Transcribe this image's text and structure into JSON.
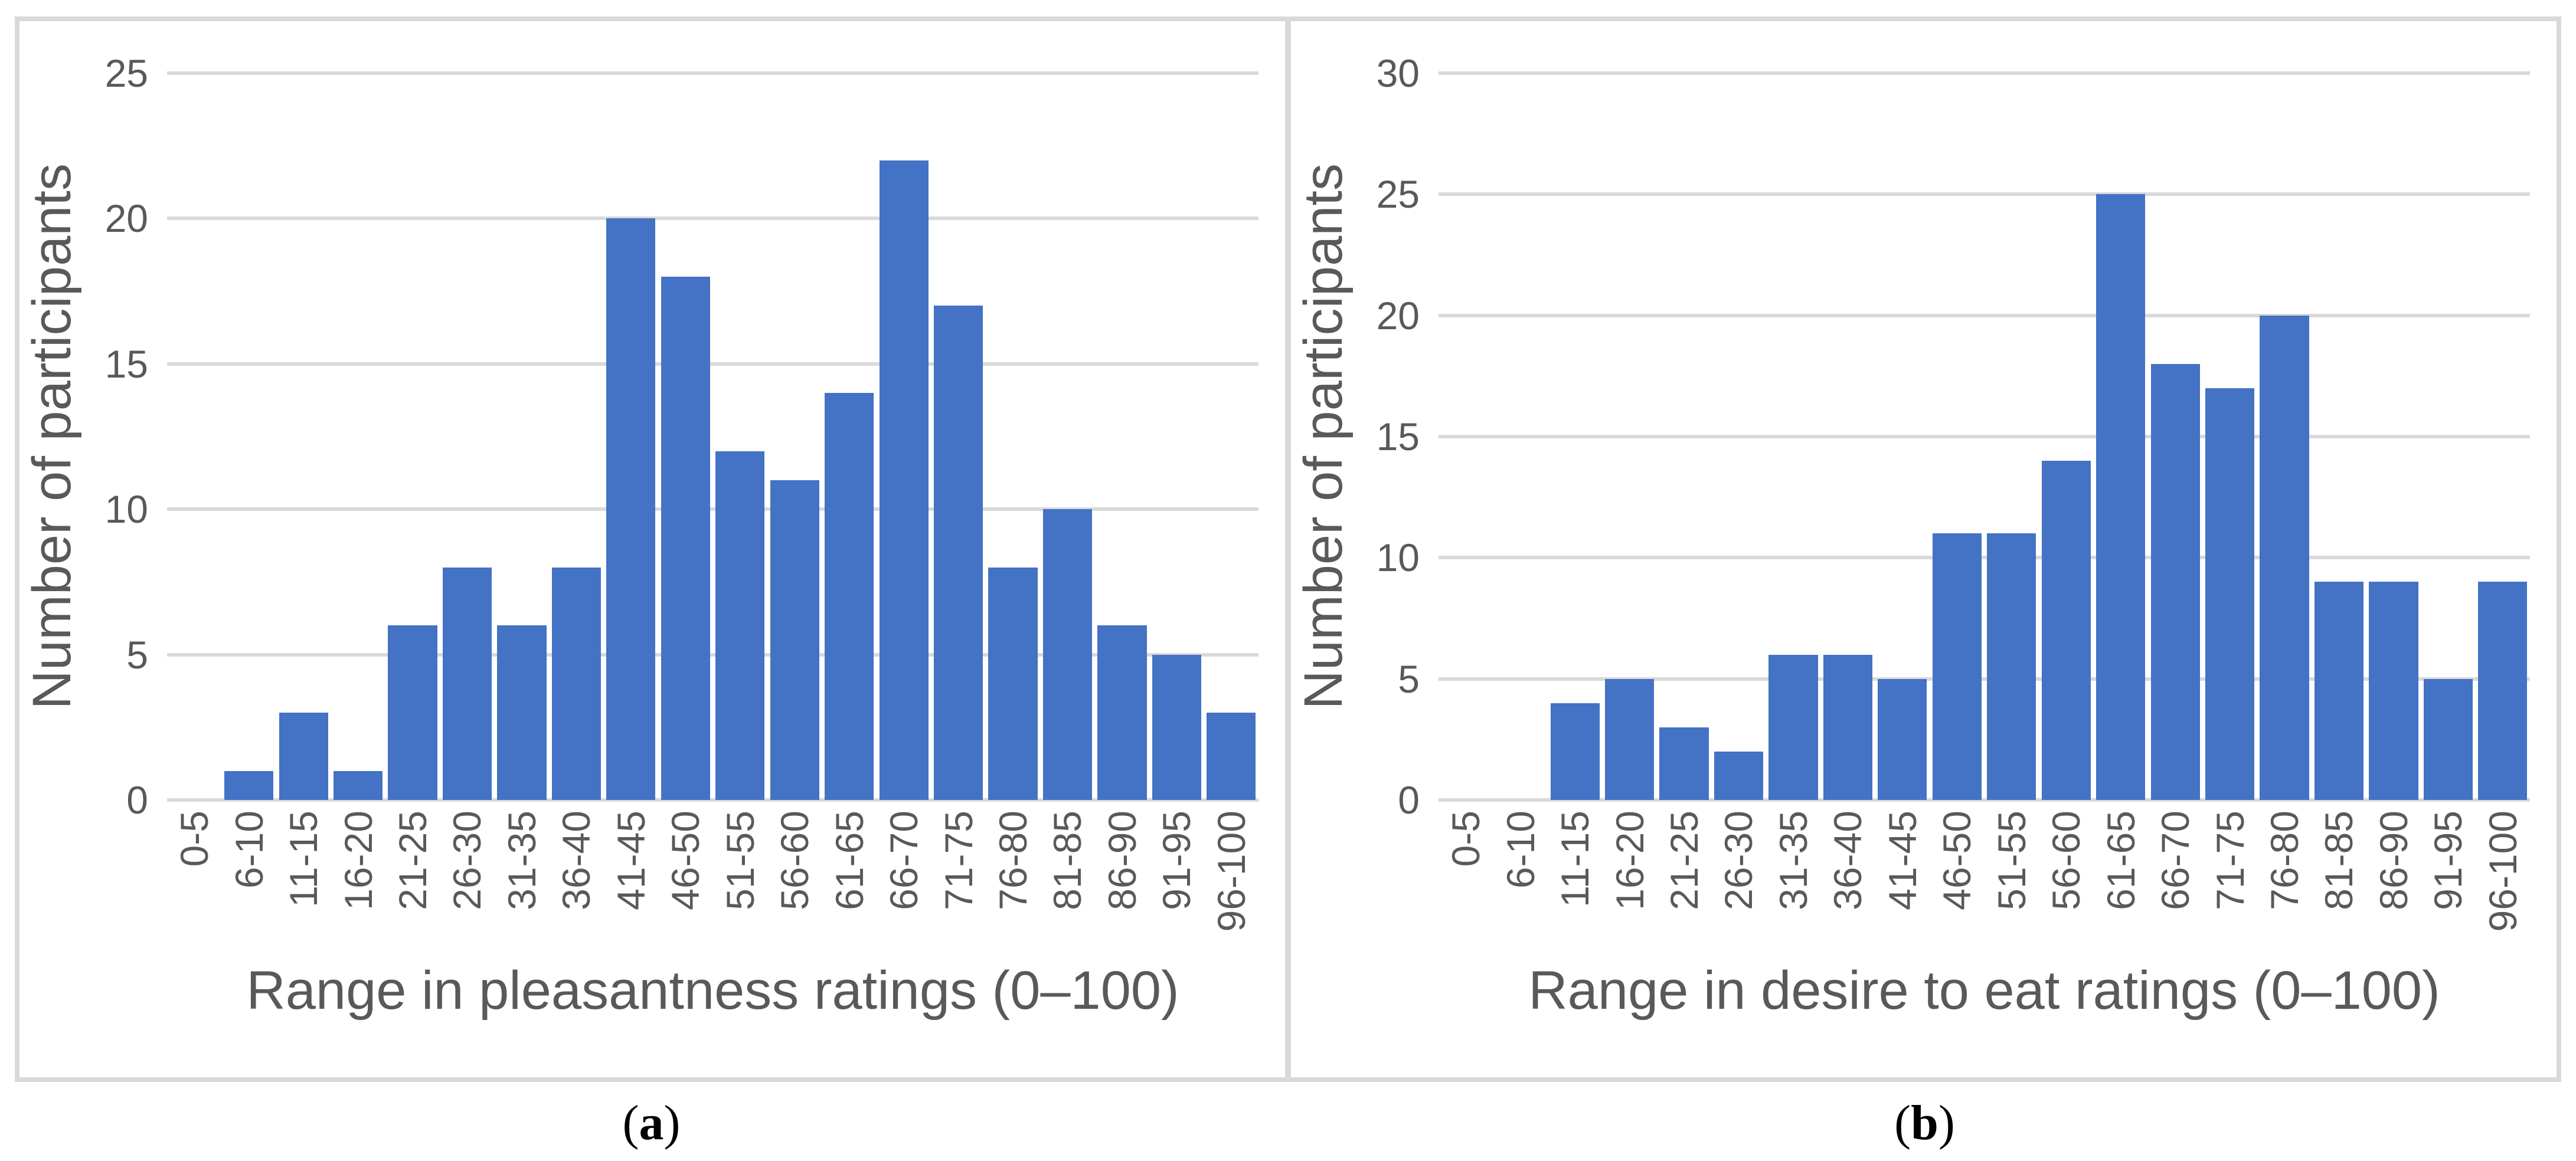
{
  "colors": {
    "bar": "#4472C4",
    "gridline": "#D9D9D9",
    "panel_border": "#D9D9D9",
    "tick_label": "#595959",
    "axis_title": "#595959",
    "caption": "#000000",
    "background": "#FFFFFF"
  },
  "chart_data": [
    {
      "type": "bar",
      "title": "",
      "xlabel": "Range in pleasantness ratings (0–100)",
      "ylabel": "Number of participants",
      "categories": [
        "0-5",
        "6-10",
        "11-15",
        "16-20",
        "21-25",
        "26-30",
        "31-35",
        "36-40",
        "41-45",
        "46-50",
        "51-55",
        "56-60",
        "61-65",
        "66-70",
        "71-75",
        "76-80",
        "81-85",
        "86-90",
        "91-95",
        "96-100"
      ],
      "values": [
        0,
        1,
        3,
        1,
        6,
        8,
        6,
        8,
        20,
        18,
        12,
        11,
        14,
        22,
        17,
        8,
        10,
        6,
        5,
        3
      ],
      "ylim": [
        0,
        25
      ],
      "yticks": [
        0,
        5,
        10,
        15,
        20,
        25
      ],
      "grid": true,
      "legend": "none",
      "bar_color": "#4472C4",
      "caption": {
        "open": "(",
        "letter": "a",
        "close": ")"
      }
    },
    {
      "type": "bar",
      "title": "",
      "xlabel": "Range in desire to eat ratings (0–100)",
      "ylabel": "Number of participants",
      "categories": [
        "0-5",
        "6-10",
        "11-15",
        "16-20",
        "21-25",
        "26-30",
        "31-35",
        "36-40",
        "41-45",
        "46-50",
        "51-55",
        "56-60",
        "61-65",
        "66-70",
        "71-75",
        "76-80",
        "81-85",
        "86-90",
        "91-95",
        "96-100"
      ],
      "values": [
        0,
        0,
        4,
        5,
        3,
        2,
        6,
        6,
        5,
        11,
        11,
        14,
        25,
        18,
        17,
        20,
        9,
        9,
        5,
        9
      ],
      "ylim": [
        0,
        30
      ],
      "yticks": [
        0,
        5,
        10,
        15,
        20,
        25,
        30
      ],
      "grid": true,
      "legend": "none",
      "bar_color": "#4472C4",
      "caption": {
        "open": "(",
        "letter": "b",
        "close": ")"
      }
    }
  ]
}
